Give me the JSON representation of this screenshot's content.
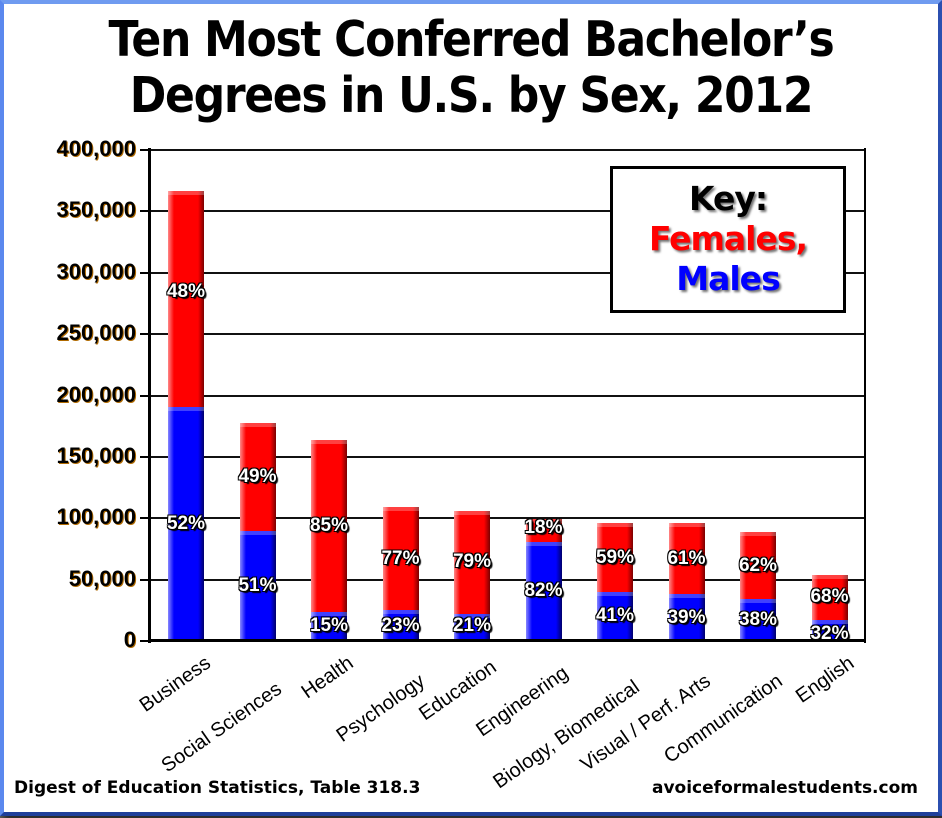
{
  "title": {
    "line1": "Ten Most Conferred Bachelor’s",
    "line2": "Degrees in U.S. by Sex, 2012"
  },
  "key": {
    "heading": "Key:",
    "females": "Females,",
    "males": "Males"
  },
  "colors": {
    "females": "#ff0000",
    "males": "#0000ff",
    "frame": "#3a6fe0"
  },
  "footer": {
    "source": "Digest of Education Statistics, Table 318.3",
    "site": "avoiceformalestudents.com"
  },
  "y_axis": {
    "ticks": [
      "400,000",
      "350,000",
      "300,000",
      "250,000",
      "200,000",
      "150,000",
      "100,000",
      "50,000",
      "0"
    ]
  },
  "chart_data": {
    "type": "bar",
    "stacked": true,
    "title": "Ten Most Conferred Bachelor’s Degrees in U.S. by Sex, 2012",
    "xlabel": "",
    "ylabel": "",
    "ylim": [
      0,
      400000
    ],
    "yticks": [
      0,
      50000,
      100000,
      150000,
      200000,
      250000,
      300000,
      350000,
      400000
    ],
    "grid": true,
    "legend": {
      "position": "upper right",
      "entries": [
        "Females",
        "Males"
      ]
    },
    "categories": [
      "Business",
      "Social Sciences",
      "Health",
      "Psychology",
      "Education",
      "Engineering",
      "Biology, Biomedical",
      "Visual / Perf. Arts",
      "Communication",
      "English"
    ],
    "series": [
      {
        "name": "Males",
        "color": "#0000ff",
        "values": [
          191000,
          90000,
          24000,
          25000,
          22000,
          81000,
          40000,
          38000,
          34000,
          17000
        ],
        "percent_labels": [
          "52%",
          "51%",
          "15%",
          "23%",
          "21%",
          "82%",
          "41%",
          "39%",
          "38%",
          "32%"
        ]
      },
      {
        "name": "Females",
        "color": "#ff0000",
        "values": [
          176000,
          88000,
          140000,
          84000,
          84000,
          18000,
          56000,
          58000,
          55000,
          37000
        ],
        "percent_labels": [
          "48%",
          "49%",
          "85%",
          "77%",
          "79%",
          "18%",
          "59%",
          "61%",
          "62%",
          "68%"
        ]
      }
    ],
    "totals": [
      367000,
      178000,
      164000,
      109000,
      106000,
      99000,
      96000,
      96000,
      89000,
      54000
    ],
    "annotations": [
      "Digest of Education Statistics, Table 318.3",
      "avoiceformalestudents.com"
    ]
  }
}
